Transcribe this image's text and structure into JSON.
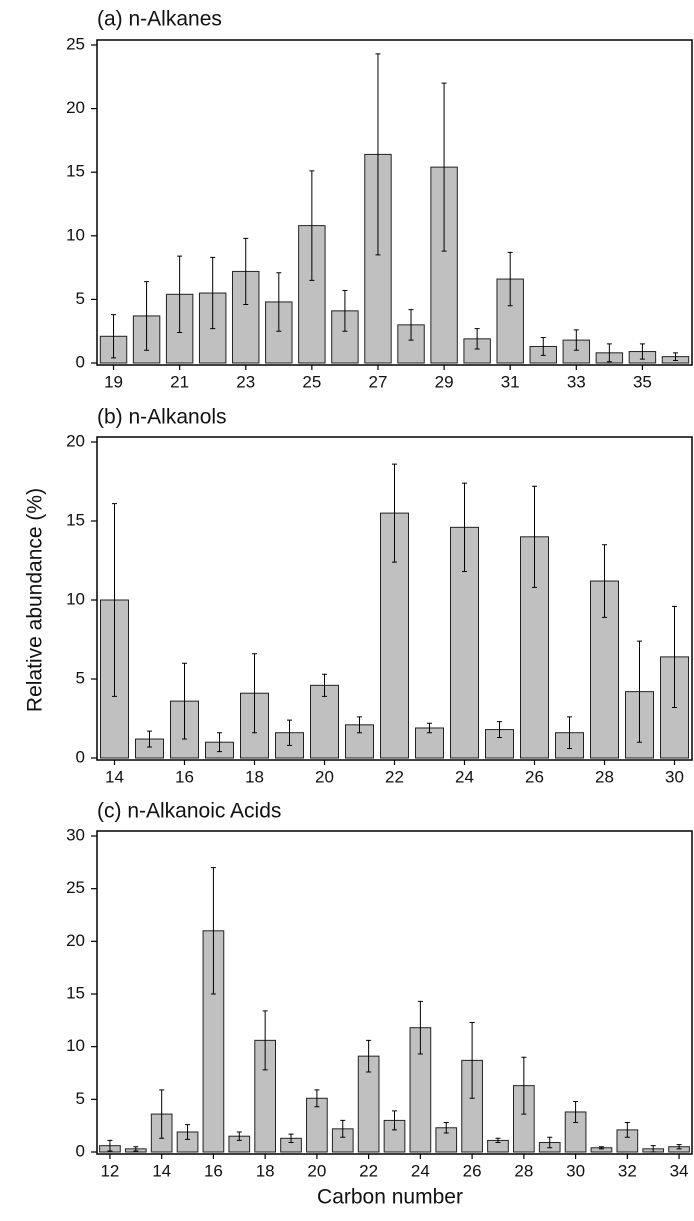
{
  "chart_data": [
    {
      "type": "bar",
      "title": "(a) n-Alkanes",
      "color": "#c0c0c0",
      "categories": [
        "19",
        null,
        "21",
        null,
        "23",
        null,
        "25",
        null,
        "27",
        null,
        "29",
        null,
        "31",
        null,
        "33",
        null,
        "35",
        null
      ],
      "values": [
        2.1,
        3.7,
        5.4,
        5.5,
        7.2,
        4.8,
        10.8,
        4.1,
        16.4,
        3.0,
        15.4,
        1.9,
        6.6,
        1.3,
        1.8,
        0.8,
        0.9,
        0.5
      ],
      "errors": [
        1.7,
        2.7,
        3.0,
        2.8,
        2.6,
        2.3,
        4.3,
        1.6,
        7.9,
        1.2,
        6.6,
        0.8,
        2.1,
        0.7,
        0.8,
        0.7,
        0.6,
        0.3
      ],
      "ylim": [
        0,
        25
      ],
      "yticks": [
        0,
        5,
        10,
        15,
        20,
        25
      ]
    },
    {
      "type": "bar",
      "title": "(b) n-Alkanols",
      "color": "#c0c0c0",
      "ylabel": "Relative abundance (%)",
      "categories": [
        "14",
        null,
        "16",
        null,
        "18",
        null,
        "20",
        null,
        "22",
        null,
        "24",
        null,
        "26",
        null,
        "28",
        null,
        "30"
      ],
      "values": [
        10.0,
        1.2,
        3.6,
        1.0,
        4.1,
        1.6,
        4.6,
        2.1,
        15.5,
        1.9,
        14.6,
        1.8,
        14.0,
        1.6,
        11.2,
        4.2,
        6.4
      ],
      "errors": [
        6.1,
        0.5,
        2.4,
        0.6,
        2.5,
        0.8,
        0.7,
        0.5,
        3.1,
        0.3,
        2.8,
        0.5,
        3.2,
        1.0,
        2.3,
        3.2,
        3.2
      ],
      "ylim": [
        0,
        20
      ],
      "yticks": [
        0,
        5,
        10,
        15,
        20
      ]
    },
    {
      "type": "bar",
      "title": "(c) n-Alkanoic Acids",
      "color": "#c0c0c0",
      "xlabel": "Carbon number",
      "categories": [
        "12",
        null,
        "14",
        null,
        "16",
        null,
        "18",
        null,
        "20",
        null,
        "22",
        null,
        "24",
        null,
        "26",
        null,
        "28",
        null,
        "30",
        null,
        "32",
        null,
        "34"
      ],
      "values": [
        0.6,
        0.3,
        3.6,
        1.9,
        21.0,
        1.5,
        10.6,
        1.3,
        5.1,
        2.2,
        9.1,
        3.0,
        11.8,
        2.3,
        8.7,
        1.1,
        6.3,
        0.9,
        3.8,
        0.4,
        2.1,
        0.3,
        0.5
      ],
      "errors": [
        0.5,
        0.2,
        2.3,
        0.7,
        6.0,
        0.4,
        2.8,
        0.4,
        0.8,
        0.8,
        1.5,
        0.9,
        2.5,
        0.5,
        3.6,
        0.2,
        2.7,
        0.5,
        1.0,
        0.1,
        0.7,
        0.3,
        0.2
      ],
      "ylim": [
        0,
        30
      ],
      "yticks": [
        0,
        5,
        10,
        15,
        20,
        25,
        30
      ]
    }
  ]
}
